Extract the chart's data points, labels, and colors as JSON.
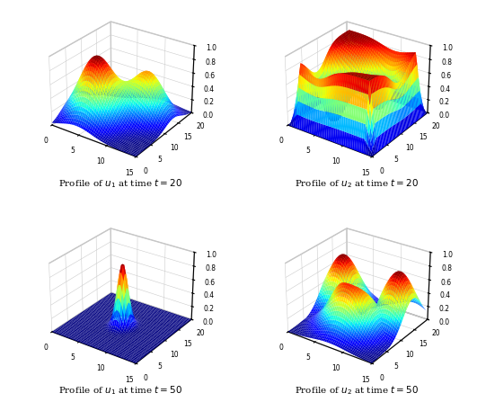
{
  "titles": [
    "Profile of $u_1$ at time $t = 20$",
    "Profile of $u_2$ at time $t = 20$",
    "Profile of $u_1$ at time $t = 50$",
    "Profile of $u_2$ at time $t = 50$"
  ],
  "xlim": [
    0,
    15
  ],
  "ylim": [
    0,
    20
  ],
  "zlim": [
    0,
    1
  ],
  "x_ticks": [
    0,
    5,
    10,
    15
  ],
  "y_ticks": [
    0,
    5,
    10,
    15,
    20
  ],
  "z_ticks": [
    0,
    0.2,
    0.4,
    0.6,
    0.8,
    1.0
  ],
  "grid_nx": 50,
  "grid_ny": 50,
  "elev": 28,
  "azim": -55,
  "title_fontsize": 7.5,
  "tick_fontsize": 5.5
}
